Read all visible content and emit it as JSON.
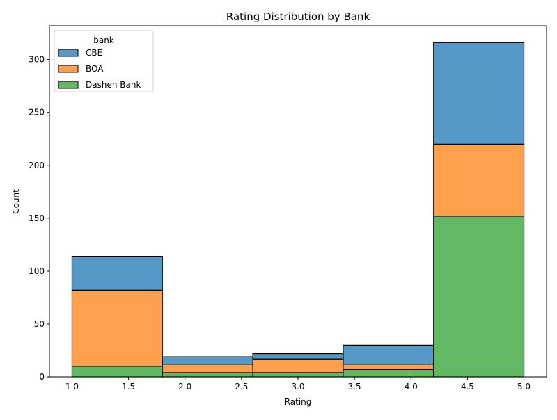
{
  "chart_data": {
    "type": "bar",
    "stacked": true,
    "title": "Rating Distribution by Bank",
    "xlabel": "Rating",
    "ylabel": "Count",
    "bin_edges": [
      1.0,
      1.8,
      2.6,
      3.4,
      4.2,
      5.0
    ],
    "xlim": [
      0.8,
      5.2
    ],
    "ylim": [
      0,
      332
    ],
    "xticks": [
      1.0,
      1.5,
      2.0,
      2.5,
      3.0,
      3.5,
      4.0,
      4.5,
      5.0
    ],
    "xtick_labels": [
      "1.0",
      "1.5",
      "2.0",
      "2.5",
      "3.0",
      "3.5",
      "4.0",
      "4.5",
      "5.0"
    ],
    "yticks": [
      0,
      50,
      100,
      150,
      200,
      250,
      300
    ],
    "ytick_labels": [
      "0",
      "50",
      "100",
      "150",
      "200",
      "250",
      "300"
    ],
    "grid": false,
    "legend": {
      "title": "bank",
      "placement": "top-left"
    },
    "series": [
      {
        "name": "Dashen Bank",
        "color": "#63b963",
        "values": [
          10,
          4,
          4,
          7,
          152
        ]
      },
      {
        "name": "BOA",
        "color": "#ffa04d",
        "values": [
          72,
          8,
          13,
          5,
          68
        ]
      },
      {
        "name": "CBE",
        "color": "#5599c8",
        "values": [
          32,
          7,
          5,
          18,
          96
        ]
      }
    ],
    "legend_order": [
      "CBE",
      "BOA",
      "Dashen Bank"
    ]
  }
}
